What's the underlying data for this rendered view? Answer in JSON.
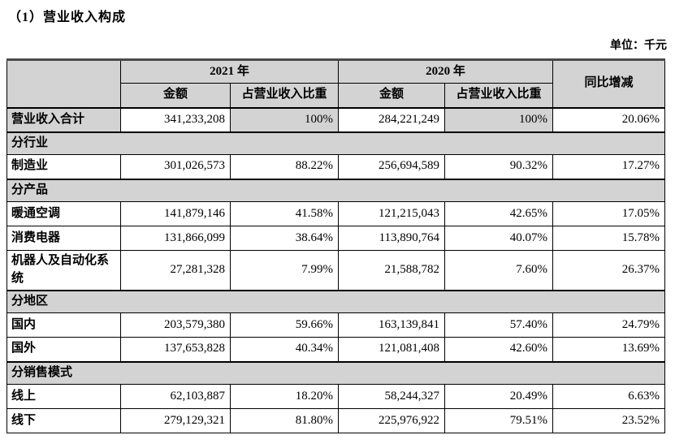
{
  "page": {
    "title": "（1）营业收入构成",
    "unit_label": "单位：千元"
  },
  "table": {
    "header": {
      "year_2021": "2021 年",
      "year_2020": "2020 年",
      "yoy": "同比增减",
      "amount": "金额",
      "share": "占营业收入比重"
    },
    "rows": [
      {
        "type": "data",
        "label": "营业收入合计",
        "amount_2021": "341,233,208",
        "share_2021": "100%",
        "amount_2020": "284,221,249",
        "share_2020": "100%",
        "yoy": "20.06%",
        "highlight": true
      },
      {
        "type": "section",
        "label": "分行业"
      },
      {
        "type": "data",
        "label": "制造业",
        "amount_2021": "301,026,573",
        "share_2021": "88.22%",
        "amount_2020": "256,694,589",
        "share_2020": "90.32%",
        "yoy": "17.27%"
      },
      {
        "type": "section",
        "label": "分产品"
      },
      {
        "type": "data",
        "label": "暖通空调",
        "amount_2021": "141,879,146",
        "share_2021": "41.58%",
        "amount_2020": "121,215,043",
        "share_2020": "42.65%",
        "yoy": "17.05%"
      },
      {
        "type": "data",
        "label": "消费电器",
        "amount_2021": "131,866,099",
        "share_2021": "38.64%",
        "amount_2020": "113,890,764",
        "share_2020": "40.07%",
        "yoy": "15.78%"
      },
      {
        "type": "data",
        "label": "机器人及自动化系统",
        "amount_2021": "27,281,328",
        "share_2021": "7.99%",
        "amount_2020": "21,588,782",
        "share_2020": "7.60%",
        "yoy": "26.37%"
      },
      {
        "type": "section",
        "label": "分地区"
      },
      {
        "type": "data",
        "label": "国内",
        "amount_2021": "203,579,380",
        "share_2021": "59.66%",
        "amount_2020": "163,139,841",
        "share_2020": "57.40%",
        "yoy": "24.79%"
      },
      {
        "type": "data",
        "label": "国外",
        "amount_2021": "137,653,828",
        "share_2021": "40.34%",
        "amount_2020": "121,081,408",
        "share_2020": "42.60%",
        "yoy": "13.69%"
      },
      {
        "type": "section",
        "label": "分销售模式"
      },
      {
        "type": "data",
        "label": "线上",
        "amount_2021": "62,103,887",
        "share_2021": "18.20%",
        "amount_2020": "58,244,327",
        "share_2020": "20.49%",
        "yoy": "6.63%"
      },
      {
        "type": "data",
        "label": "线下",
        "amount_2021": "279,129,321",
        "share_2021": "81.80%",
        "amount_2020": "225,976,922",
        "share_2020": "79.51%",
        "yoy": "23.52%"
      }
    ],
    "colors": {
      "header_bg": "#d3d3d3",
      "section_bg": "#d3d3d3",
      "grid_border": "#000000",
      "table_top_border": "#4a4a4a"
    }
  }
}
